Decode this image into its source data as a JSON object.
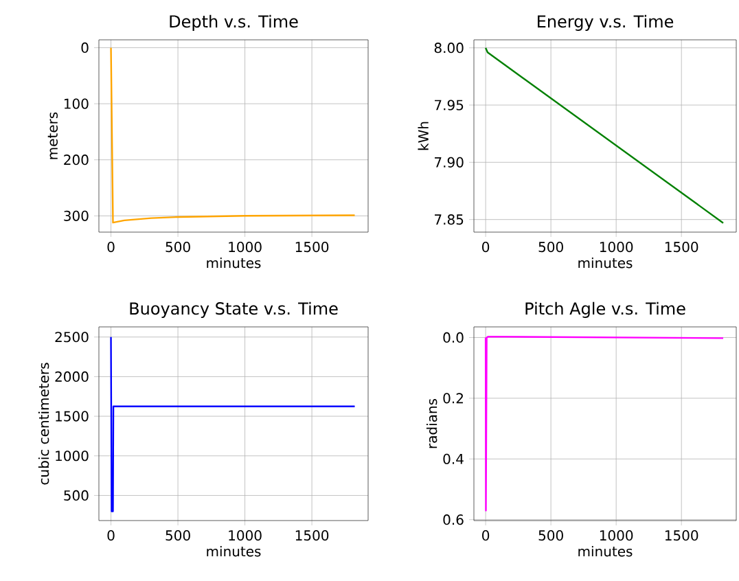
{
  "chart_data": [
    {
      "type": "line",
      "title": "Depth v.s. Time",
      "xlabel": "minutes",
      "ylabel": "meters",
      "xlim": [
        -90,
        1920
      ],
      "xticks": [
        0,
        500,
        1000,
        1500
      ],
      "ylim": [
        329,
        -14
      ],
      "yticks": [
        0,
        100,
        200,
        300
      ],
      "grid": true,
      "series": [
        {
          "color": "#ffa500",
          "x": [
            0,
            15,
            100,
            300,
            500,
            1000,
            1820
          ],
          "values": [
            0,
            312,
            308,
            304,
            302,
            300,
            299
          ]
        }
      ]
    },
    {
      "type": "line",
      "title": "Energy v.s. Time",
      "xlabel": "minutes",
      "ylabel": "kWh",
      "xlim": [
        -90,
        1920
      ],
      "xticks": [
        0,
        500,
        1000,
        1500
      ],
      "ylim": [
        7.839,
        8.007
      ],
      "yticks": [
        {
          "value": 7.85,
          "label": "7.85"
        },
        {
          "value": 7.9,
          "label": "7.90"
        },
        {
          "value": 7.95,
          "label": "7.95"
        },
        {
          "value": 8.0,
          "label": "8.00"
        }
      ],
      "grid": true,
      "series": [
        {
          "color": "#008000",
          "x": [
            0,
            15,
            1820
          ],
          "values": [
            8.0,
            7.996,
            7.847
          ]
        }
      ]
    },
    {
      "type": "line",
      "title": "Buoyancy State v.s. Time",
      "xlabel": "minutes",
      "ylabel": "cubic centimeters",
      "xlim": [
        -90,
        1920
      ],
      "xticks": [
        0,
        500,
        1000,
        1500
      ],
      "ylim": [
        183,
        2628
      ],
      "yticks": [
        500,
        1000,
        1500,
        2000,
        2500
      ],
      "grid": true,
      "series": [
        {
          "color": "#0000ff",
          "x": [
            0,
            5,
            15,
            18,
            1820
          ],
          "values": [
            2500,
            300,
            300,
            1625,
            1625
          ]
        }
      ]
    },
    {
      "type": "line",
      "title": "Pitch Agle v.s. Time",
      "xlabel": "minutes",
      "ylabel": "radians",
      "xlim": [
        -90,
        1920
      ],
      "xticks": [
        0,
        500,
        1000,
        1500
      ],
      "ylim": [
        0.603,
        -0.035
      ],
      "yticks": [
        {
          "value": 0,
          "label": "0.0"
        },
        {
          "value": 0.2,
          "label": "0.2"
        },
        {
          "value": 0.4,
          "label": "0.4"
        },
        {
          "value": 0.6,
          "label": "0.6"
        }
      ],
      "grid": true,
      "series": [
        {
          "color": "#ff00ff",
          "x": [
            0,
            2,
            8,
            20,
            1820
          ],
          "values": [
            0.0,
            0.57,
            0.0,
            -0.003,
            0.002
          ]
        }
      ]
    }
  ]
}
